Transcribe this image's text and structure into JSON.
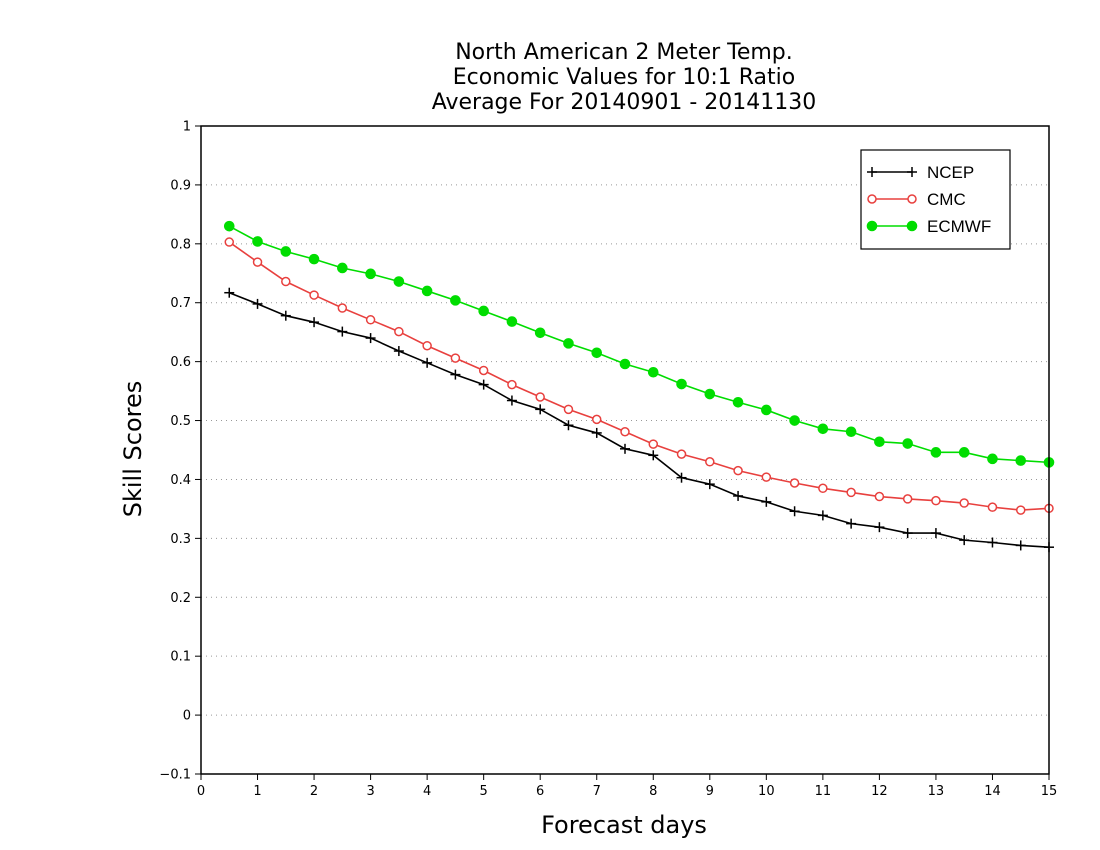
{
  "chart_data": {
    "type": "line",
    "title": [
      "North American 2 Meter Temp.",
      "Economic Values for 10:1 Ratio",
      "Average For 20140901 - 20141130"
    ],
    "xlabel": "Forecast days",
    "ylabel": "Skill Scores",
    "xlim": [
      0,
      15
    ],
    "ylim": [
      -0.1,
      1
    ],
    "xticks": [
      "0",
      "1",
      "2",
      "3",
      "4",
      "5",
      "6",
      "7",
      "8",
      "9",
      "10",
      "11",
      "12",
      "13",
      "14",
      "15"
    ],
    "yticks": [
      "-0.1",
      "0",
      "0.1",
      "0.2",
      "0.3",
      "0.4",
      "0.5",
      "0.6",
      "0.7",
      "0.8",
      "0.9",
      "1"
    ],
    "grid": "horizontal dotted",
    "legend_position": "top-right",
    "x": [
      0.5,
      1,
      1.5,
      2,
      2.5,
      3,
      3.5,
      4,
      4.5,
      5,
      5.5,
      6,
      6.5,
      7,
      7.5,
      8,
      8.5,
      9,
      9.5,
      10,
      10.5,
      11,
      11.5,
      12,
      12.5,
      13,
      13.5,
      14,
      14.5,
      15
    ],
    "series": [
      {
        "name": "NCEP",
        "color": "#000000",
        "marker": "plus",
        "values": [
          0.717,
          0.698,
          0.678,
          0.667,
          0.651,
          0.64,
          0.618,
          0.598,
          0.578,
          0.561,
          0.534,
          0.519,
          0.492,
          0.479,
          0.452,
          0.441,
          0.403,
          0.392,
          0.372,
          0.362,
          0.346,
          0.339,
          0.325,
          0.319,
          0.309,
          0.309,
          0.297,
          0.293,
          0.288,
          0.285
        ]
      },
      {
        "name": "CMC",
        "color": "#e8403e",
        "marker": "open-circle",
        "values": [
          0.803,
          0.769,
          0.736,
          0.713,
          0.691,
          0.671,
          0.651,
          0.627,
          0.606,
          0.585,
          0.561,
          0.54,
          0.519,
          0.502,
          0.481,
          0.46,
          0.443,
          0.43,
          0.415,
          0.404,
          0.394,
          0.385,
          0.378,
          0.371,
          0.367,
          0.364,
          0.36,
          0.353,
          0.348,
          0.351
        ]
      },
      {
        "name": "ECMWF",
        "color": "#00dd00",
        "marker": "filled-circle",
        "values": [
          0.83,
          0.804,
          0.787,
          0.774,
          0.759,
          0.749,
          0.736,
          0.72,
          0.704,
          0.686,
          0.668,
          0.649,
          0.631,
          0.615,
          0.596,
          0.582,
          0.562,
          0.545,
          0.531,
          0.518,
          0.5,
          0.486,
          0.481,
          0.464,
          0.461,
          0.446,
          0.446,
          0.435,
          0.432,
          0.429
        ]
      }
    ]
  }
}
